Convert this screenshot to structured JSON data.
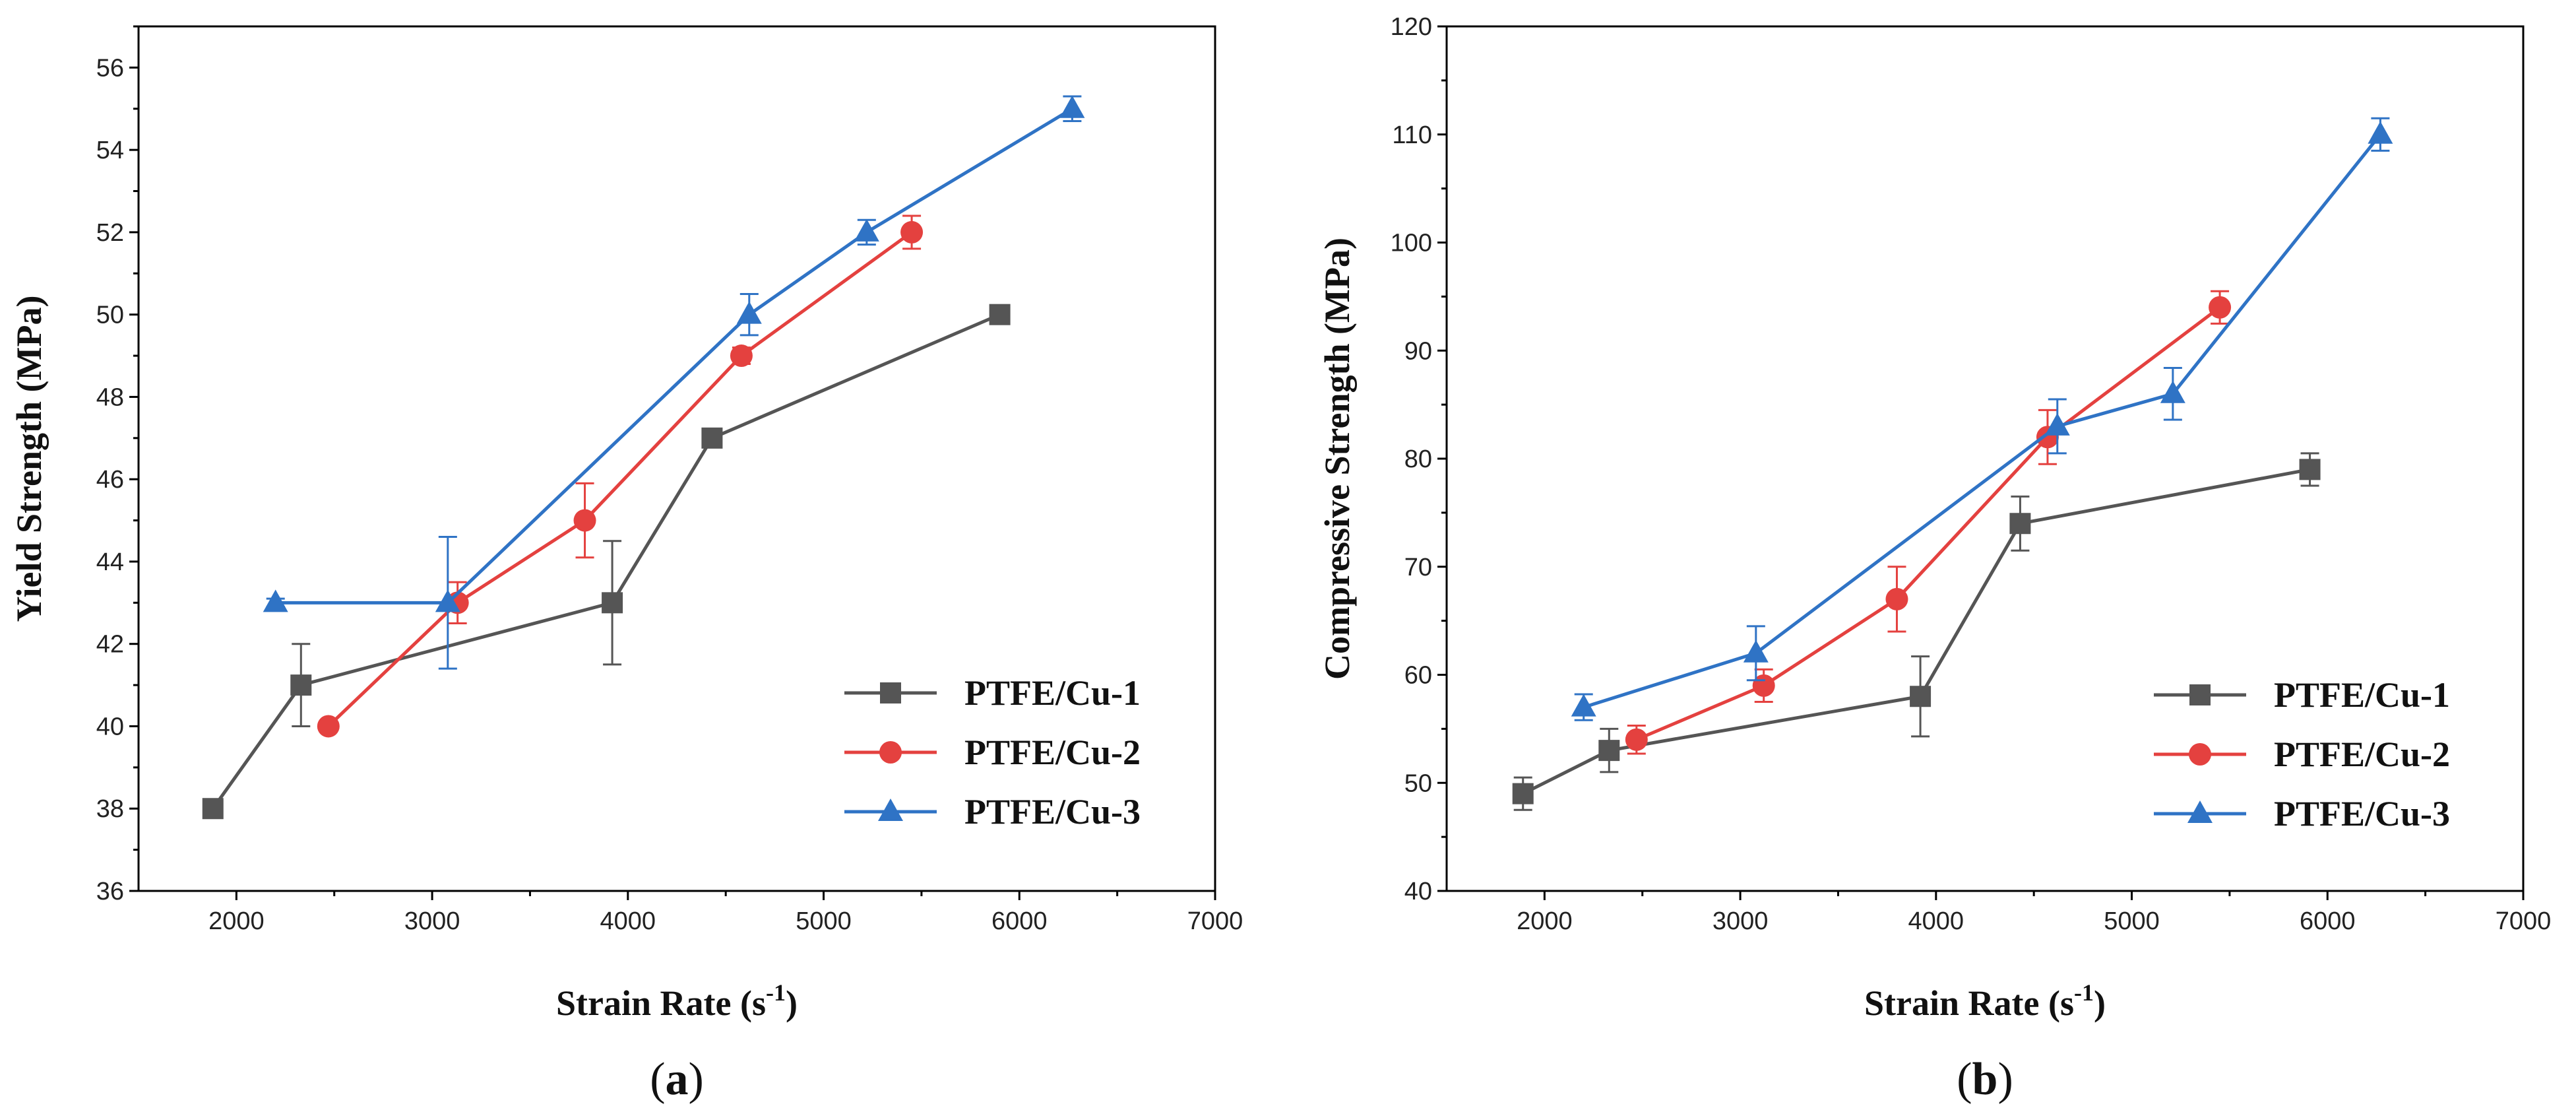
{
  "chart_data": [
    {
      "type": "line",
      "panel": "a",
      "caption": "(a)",
      "caption_letter": "a",
      "xlabel": "Strain Rate (s-1)",
      "xlabel_main": "Strain Rate (s",
      "xlabel_sup": "-1",
      "xlabel_close": ")",
      "ylabel": "Yield Strength (MPa)",
      "xlim": [
        1500,
        7000
      ],
      "ylim": [
        36,
        57
      ],
      "xticks": [
        2000,
        3000,
        4000,
        5000,
        6000,
        7000
      ],
      "yticks": [
        36,
        38,
        40,
        42,
        44,
        46,
        48,
        50,
        52,
        54,
        56
      ],
      "legend_position": "bottom-right",
      "grid": false,
      "series": [
        {
          "name": "PTFE/Cu-1",
          "color": "#555555",
          "marker": "square",
          "x": [
            1880,
            2330,
            3920,
            4430,
            5900
          ],
          "y": [
            38,
            41,
            43,
            47,
            50
          ],
          "err": [
            0.2,
            1.0,
            1.5,
            0.2,
            0.2
          ]
        },
        {
          "name": "PTFE/Cu-2",
          "color": "#E4413F",
          "marker": "circle",
          "x": [
            2470,
            3130,
            3780,
            4580,
            5450
          ],
          "y": [
            40,
            43,
            45,
            49,
            52
          ],
          "err": [
            0.1,
            0.5,
            0.9,
            0.2,
            0.4
          ]
        },
        {
          "name": "PTFE/Cu-3",
          "color": "#2F73C5",
          "marker": "triangle",
          "x": [
            2200,
            3080,
            4620,
            5220,
            6270
          ],
          "y": [
            43,
            43,
            50,
            52,
            55
          ],
          "err": [
            0.1,
            1.6,
            0.5,
            0.3,
            0.3
          ]
        }
      ]
    },
    {
      "type": "line",
      "panel": "b",
      "caption": "(b)",
      "caption_letter": "b",
      "xlabel": "Strain Rate (s-1)",
      "xlabel_main": "Strain Rate (s",
      "xlabel_sup": "-1",
      "xlabel_close": ")",
      "ylabel": "Compressive Strength (MPa)",
      "xlim": [
        1500,
        7000
      ],
      "ylim": [
        40,
        120
      ],
      "xticks": [
        2000,
        3000,
        4000,
        5000,
        6000,
        7000
      ],
      "yticks": [
        40,
        50,
        60,
        70,
        80,
        90,
        100,
        110,
        120
      ],
      "legend_position": "bottom-right",
      "grid": false,
      "series": [
        {
          "name": "PTFE/Cu-1",
          "color": "#555555",
          "marker": "square",
          "x": [
            1890,
            2330,
            3920,
            4430,
            5910
          ],
          "y": [
            49,
            53,
            58,
            74,
            79
          ],
          "err": [
            1.5,
            2.0,
            3.7,
            2.5,
            1.5
          ]
        },
        {
          "name": "PTFE/Cu-2",
          "color": "#E4413F",
          "marker": "circle",
          "x": [
            2470,
            3120,
            3800,
            4570,
            5450
          ],
          "y": [
            54,
            59,
            67,
            82,
            94
          ],
          "err": [
            1.3,
            1.5,
            3.0,
            2.5,
            1.5
          ]
        },
        {
          "name": "PTFE/Cu-3",
          "color": "#2F73C5",
          "marker": "triangle",
          "x": [
            2200,
            3080,
            4620,
            5210,
            6270
          ],
          "y": [
            57,
            62,
            83,
            86,
            110
          ],
          "err": [
            1.2,
            2.5,
            2.5,
            2.4,
            1.5
          ]
        }
      ]
    }
  ]
}
